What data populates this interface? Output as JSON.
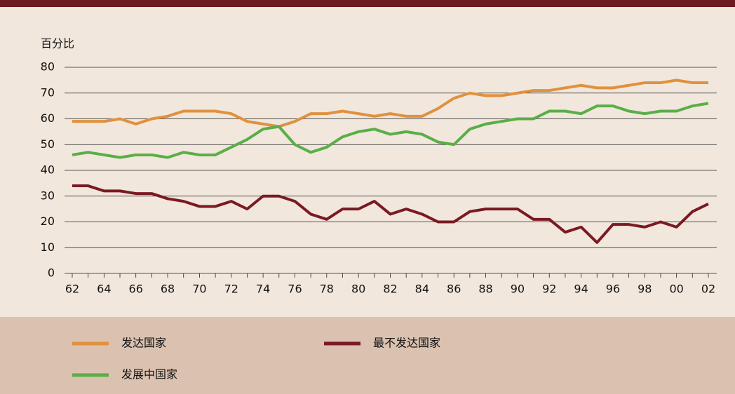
{
  "chart_data": {
    "type": "line",
    "ylabel": "百分比",
    "categories": [
      "62",
      null,
      "64",
      null,
      "66",
      null,
      "68",
      null,
      "70",
      null,
      "72",
      null,
      "74",
      null,
      "76",
      null,
      "78",
      null,
      "80",
      null,
      "82",
      null,
      "84",
      null,
      "86",
      null,
      "88",
      null,
      "90",
      null,
      "92",
      null,
      "94",
      null,
      "96",
      null,
      "98",
      null,
      "00",
      null,
      "02"
    ],
    "series": [
      {
        "name": "发达国家",
        "color": "#e0913e",
        "values": [
          59,
          59,
          59,
          60,
          58,
          60,
          61,
          63,
          63,
          63,
          62,
          59,
          58,
          57,
          59,
          62,
          62,
          63,
          62,
          61,
          62,
          61,
          61,
          64,
          68,
          70,
          69,
          69,
          70,
          71,
          71,
          72,
          73,
          72,
          72,
          73,
          74,
          74,
          75,
          74,
          74
        ]
      },
      {
        "name": "最不发达国家",
        "color": "#7a1a22",
        "values": [
          34,
          34,
          32,
          32,
          31,
          31,
          29,
          28,
          26,
          26,
          28,
          25,
          30,
          30,
          28,
          23,
          21,
          25,
          25,
          28,
          23,
          25,
          23,
          20,
          20,
          24,
          25,
          25,
          25,
          21,
          21,
          16,
          18,
          12,
          19,
          19,
          18,
          20,
          18,
          24,
          27
        ]
      },
      {
        "name": "发展中国家",
        "color": "#5aae47",
        "values": [
          46,
          47,
          46,
          45,
          46,
          46,
          45,
          47,
          46,
          46,
          49,
          52,
          56,
          57,
          50,
          47,
          49,
          53,
          55,
          56,
          54,
          55,
          54,
          51,
          50,
          56,
          58,
          59,
          60,
          60,
          63,
          63,
          62,
          65,
          65,
          63,
          62,
          63,
          63,
          65,
          66
        ]
      }
    ],
    "ylim": [
      0,
      80
    ],
    "yticks": [
      0,
      10,
      20,
      30,
      40,
      50,
      60,
      70,
      80
    ],
    "grid": true
  }
}
